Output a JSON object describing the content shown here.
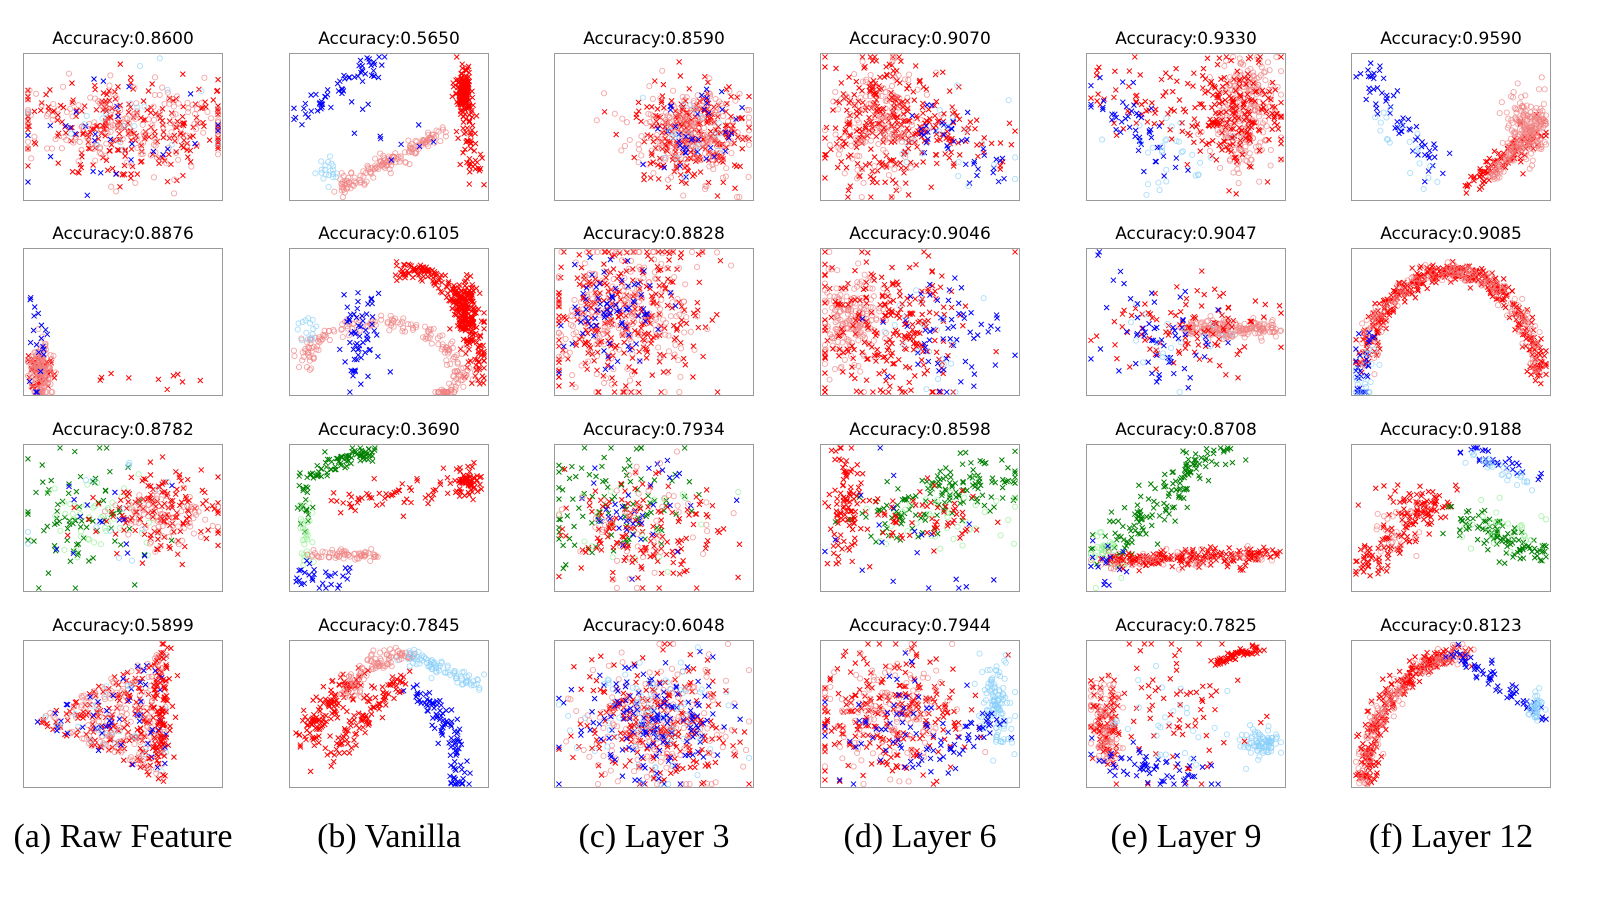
{
  "chart_data": {
    "type": "scatter",
    "series_legend": [
      {
        "name": "class-a-x",
        "marker": "x",
        "color": "#ff0000"
      },
      {
        "name": "class-a-o",
        "marker": "o",
        "color": "#f08080"
      },
      {
        "name": "class-b-x",
        "marker": "x",
        "color": "#0000ff"
      },
      {
        "name": "class-b-o",
        "marker": "o",
        "color": "#87cefa"
      },
      {
        "name": "class-c-x",
        "marker": "x",
        "color": "#008000"
      },
      {
        "name": "class-c-o",
        "marker": "o",
        "color": "#90ee90"
      }
    ],
    "columns": [
      "(a) Raw Feature",
      "(b) Vanilla",
      "(c) Layer 3",
      "(d) Layer 6",
      "(e) Layer 9",
      "(f) Layer 12"
    ],
    "rows": [
      [
        "Accuracy:0.8600",
        "Accuracy:0.5650",
        "Accuracy:0.8590",
        "Accuracy:0.9070",
        "Accuracy:0.9330",
        "Accuracy:0.9590"
      ],
      [
        "Accuracy:0.8876",
        "Accuracy:0.6105",
        "Accuracy:0.8828",
        "Accuracy:0.9046",
        "Accuracy:0.9047",
        "Accuracy:0.9085"
      ],
      [
        "Accuracy:0.8782",
        "Accuracy:0.3690",
        "Accuracy:0.7934",
        "Accuracy:0.8598",
        "Accuracy:0.8708",
        "Accuracy:0.9188"
      ],
      [
        "Accuracy:0.5899",
        "Accuracy:0.7845",
        "Accuracy:0.6048",
        "Accuracy:0.7944",
        "Accuracy:0.7825",
        "Accuracy:0.8123"
      ]
    ],
    "accuracy": [
      [
        0.86,
        0.565,
        0.859,
        0.907,
        0.933,
        0.959
      ],
      [
        0.8876,
        0.6105,
        0.8828,
        0.9046,
        0.9047,
        0.9085
      ],
      [
        0.8782,
        0.369,
        0.7934,
        0.8598,
        0.8708,
        0.9188
      ],
      [
        0.5899,
        0.7845,
        0.6048,
        0.7944,
        0.7825,
        0.8123
      ]
    ]
  }
}
